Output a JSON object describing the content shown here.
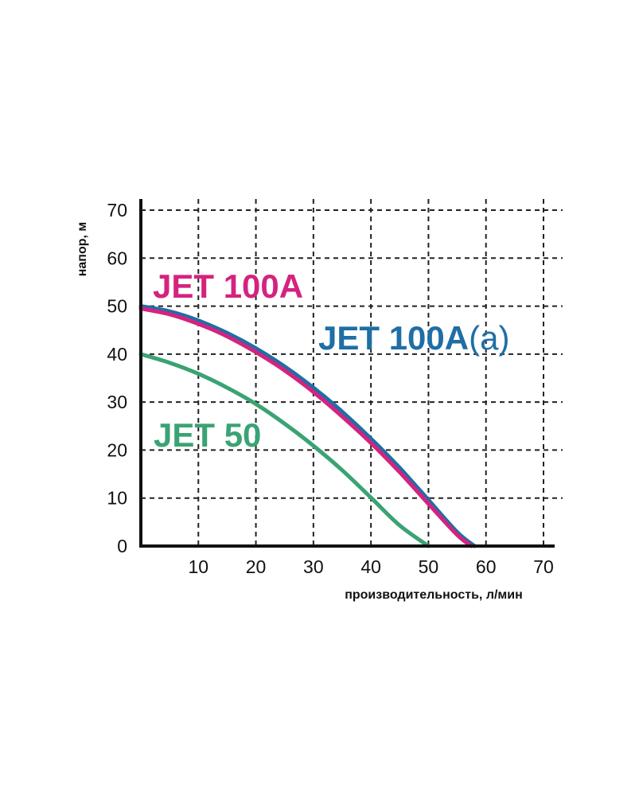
{
  "chart_data": {
    "type": "line",
    "title": "",
    "xlabel": "производительность, л/мин",
    "ylabel": "напор, м",
    "xlim": [
      0,
      70
    ],
    "ylim": [
      0,
      70
    ],
    "x_ticks": [
      "10",
      "20",
      "30",
      "40",
      "50",
      "60",
      "70"
    ],
    "y_ticks": [
      "0",
      "10",
      "20",
      "30",
      "40",
      "50",
      "60",
      "70"
    ],
    "grid": true,
    "series": [
      {
        "name": "JET 100A",
        "color": "#d4237f",
        "points": [
          [
            0,
            49.5
          ],
          [
            5,
            48.3
          ],
          [
            10,
            46.3
          ],
          [
            15,
            43.7
          ],
          [
            20,
            40.4
          ],
          [
            25,
            36.6
          ],
          [
            30,
            32.1
          ],
          [
            35,
            27.0
          ],
          [
            40,
            21.5
          ],
          [
            45,
            15.4
          ],
          [
            50,
            8.8
          ],
          [
            55,
            2.3
          ],
          [
            57.5,
            0
          ]
        ]
      },
      {
        "name": "JET 100A",
        "name_suffix": "(a)",
        "color": "#1f6ea6",
        "points": [
          [
            0,
            50
          ],
          [
            5,
            48.9
          ],
          [
            10,
            47.0
          ],
          [
            15,
            44.4
          ],
          [
            20,
            41.2
          ],
          [
            25,
            37.4
          ],
          [
            30,
            33.0
          ],
          [
            35,
            28.0
          ],
          [
            40,
            22.4
          ],
          [
            45,
            16.3
          ],
          [
            50,
            9.6
          ],
          [
            55,
            2.9
          ],
          [
            58,
            0
          ]
        ]
      },
      {
        "name": "JET 50",
        "color": "#3aa374",
        "points": [
          [
            0,
            40
          ],
          [
            5,
            38.2
          ],
          [
            10,
            35.9
          ],
          [
            15,
            33.0
          ],
          [
            20,
            29.6
          ],
          [
            25,
            25.5
          ],
          [
            30,
            20.9
          ],
          [
            35,
            15.8
          ],
          [
            40,
            10.1
          ],
          [
            45,
            4.3
          ],
          [
            50,
            0
          ]
        ]
      }
    ]
  }
}
